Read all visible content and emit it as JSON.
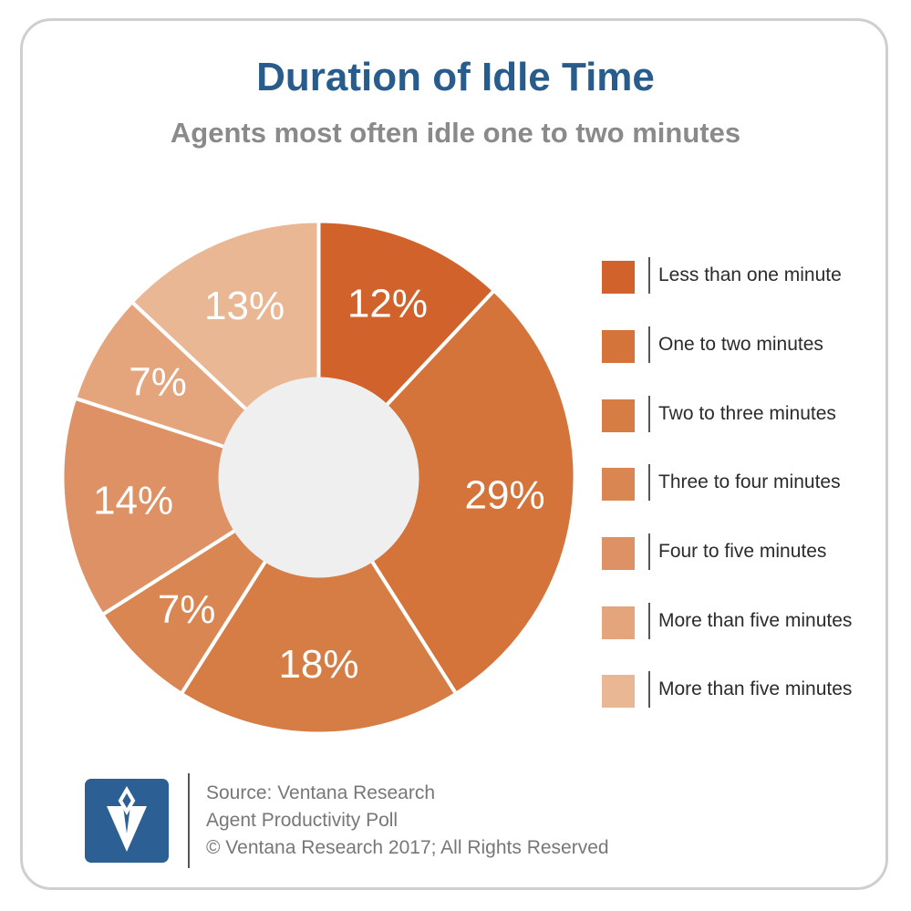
{
  "chart_data": {
    "type": "pie",
    "title": "Duration of Idle Time",
    "subtitle": "Agents most often idle one to two minutes",
    "series": [
      {
        "label": "Less than one minute",
        "value": 12,
        "display": "12%",
        "color": "#d2622b"
      },
      {
        "label": "One to two minutes",
        "value": 29,
        "display": "29%",
        "color": "#d4733a"
      },
      {
        "label": "Two to three minutes",
        "value": 18,
        "display": "18%",
        "color": "#d67d46"
      },
      {
        "label": "Three to four minutes",
        "value": 7,
        "display": "7%",
        "color": "#d98652"
      },
      {
        "label": "Four to five minutes",
        "value": 14,
        "display": "14%",
        "color": "#dd9164"
      },
      {
        "label": "More than five minutes",
        "value": 7,
        "display": "7%",
        "color": "#e4a47c"
      },
      {
        "label": "More than five minutes",
        "value": 13,
        "display": "13%",
        "color": "#e9b794"
      }
    ],
    "legend_position": "right"
  },
  "footer": {
    "source": "Source: Ventana Research",
    "poll": "Agent Productivity Poll",
    "copyright": "© Ventana Research 2017; All Rights Reserved"
  }
}
